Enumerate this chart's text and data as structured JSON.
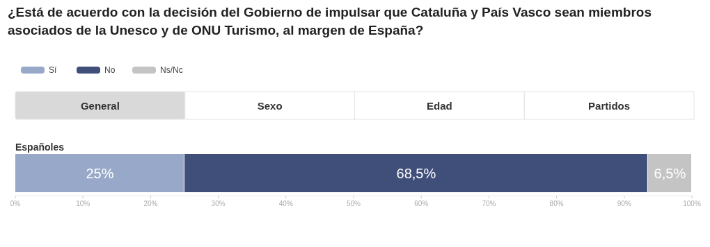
{
  "chart_data": {
    "type": "bar",
    "orientation": "horizontal",
    "stacked": true,
    "title": "¿Está de acuerdo con la decisión del Gobierno de impulsar que Cataluña y País Vasco sean miembros asociados de la Unesco y de ONU Turismo, al margen de España?",
    "categories": [
      "Españoles"
    ],
    "series": [
      {
        "name": "Sí",
        "color": "#97a8c8",
        "values": [
          25
        ],
        "value_labels": [
          "25%"
        ]
      },
      {
        "name": "No",
        "color": "#3f4f7a",
        "values": [
          68.5
        ],
        "value_labels": [
          "68,5%"
        ]
      },
      {
        "name": "Ns/Nc",
        "color": "#c4c4c4",
        "values": [
          6.5
        ],
        "value_labels": [
          "6,5%"
        ]
      }
    ],
    "xlim": [
      0,
      100
    ],
    "xticks": [
      {
        "value": 0,
        "label": "0%"
      },
      {
        "value": 10,
        "label": "10%"
      },
      {
        "value": 20,
        "label": "20%"
      },
      {
        "value": 30,
        "label": "30%"
      },
      {
        "value": 40,
        "label": "40%"
      },
      {
        "value": 50,
        "label": "50%"
      },
      {
        "value": 60,
        "label": "60%"
      },
      {
        "value": 70,
        "label": "70%"
      },
      {
        "value": 80,
        "label": "80%"
      },
      {
        "value": 90,
        "label": "90%"
      },
      {
        "value": 100,
        "label": "100%"
      }
    ],
    "legend": "top left",
    "grid": false,
    "annotations": [
      "General",
      "Sexo",
      "Edad",
      "Partidos"
    ]
  }
}
